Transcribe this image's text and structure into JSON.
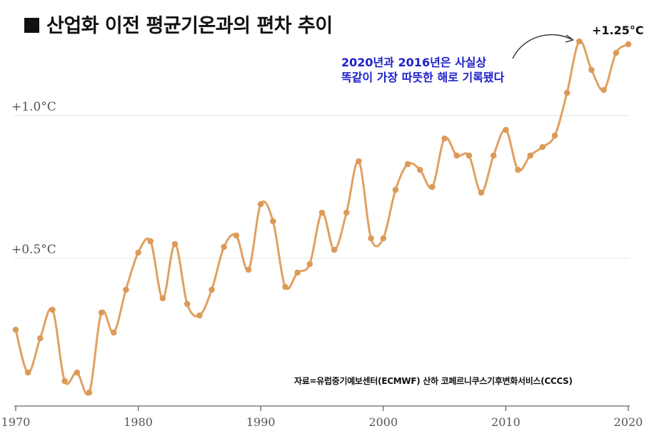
{
  "title": "산업화 이전 평균기온과의 편차 추이",
  "annotation": {
    "line1": "2020년과 2016년은 사실상",
    "line2": "똑같이 가장 따뜻한 해로 기록됐다",
    "peak_label": "+1.25°C"
  },
  "source": "자료=유럽중기예보센터(ECMWF) 산하 코페르니쿠스기후변화서비스(CCCS)",
  "colors": {
    "line": "#e0a060",
    "point": "#dc9a58",
    "callout": "#1c1fc8",
    "grid": "#e3e3e3"
  },
  "icons": [
    "title-square-icon",
    "callout-arrow-icon"
  ],
  "chart_data": {
    "type": "line",
    "title": "산업화 이전 평균기온과의 편차 추이",
    "xlabel": "",
    "ylabel": "",
    "xlim": [
      1970,
      2020
    ],
    "ylim": [
      0.0,
      1.3
    ],
    "x_ticks": [
      "1970",
      "1980",
      "1990",
      "2000",
      "2010",
      "2020"
    ],
    "y_ticks": [
      {
        "value": 0.5,
        "label": "+0.5°C"
      },
      {
        "value": 1.0,
        "label": "+1.0°C"
      }
    ],
    "grid": true,
    "x": [
      1970,
      1971,
      1972,
      1973,
      1974,
      1975,
      1976,
      1977,
      1978,
      1979,
      1980,
      1981,
      1982,
      1983,
      1984,
      1985,
      1986,
      1987,
      1988,
      1989,
      1990,
      1991,
      1992,
      1993,
      1994,
      1995,
      1996,
      1997,
      1998,
      1999,
      2000,
      2001,
      2002,
      2003,
      2004,
      2005,
      2006,
      2007,
      2008,
      2009,
      2010,
      2011,
      2012,
      2013,
      2014,
      2015,
      2016,
      2017,
      2018,
      2019,
      2020
    ],
    "series": [
      {
        "values": [
          0.25,
          0.1,
          0.22,
          0.32,
          0.07,
          0.1,
          0.03,
          0.31,
          0.24,
          0.39,
          0.52,
          0.56,
          0.36,
          0.55,
          0.34,
          0.3,
          0.39,
          0.54,
          0.58,
          0.46,
          0.69,
          0.63,
          0.4,
          0.45,
          0.48,
          0.66,
          0.53,
          0.66,
          0.84,
          0.57,
          0.57,
          0.74,
          0.83,
          0.81,
          0.75,
          0.92,
          0.86,
          0.86,
          0.73,
          0.86,
          0.95,
          0.81,
          0.86,
          0.89,
          0.93,
          1.08,
          1.26,
          1.16,
          1.09,
          1.22,
          1.25
        ]
      }
    ]
  }
}
